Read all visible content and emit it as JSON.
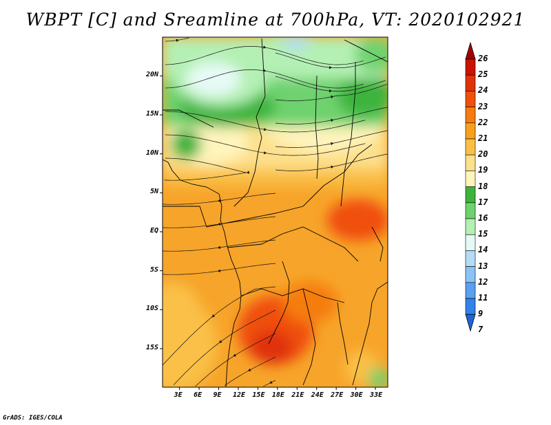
{
  "title": "WBPT [C] and Sreamline at 700hPa, VT: 2020102921",
  "credit": "GrADS: IGES/COLA",
  "lat_axis": [
    "20N",
    "15N",
    "10N",
    "5N",
    "EQ",
    "5S",
    "10S",
    "15S"
  ],
  "lon_axis": [
    "3E",
    "6E",
    "9E",
    "12E",
    "15E",
    "18E",
    "21E",
    "24E",
    "27E",
    "30E",
    "33E"
  ],
  "colorbar": {
    "levels": [
      "26",
      "25",
      "24",
      "23",
      "22",
      "21",
      "20",
      "19",
      "18",
      "17",
      "16",
      "15",
      "14",
      "13",
      "12",
      "11",
      "9",
      "7"
    ],
    "colors": [
      "#a50000",
      "#c81400",
      "#e0320a",
      "#f0500a",
      "#f57d0f",
      "#f8a01e",
      "#fac046",
      "#fde08c",
      "#fff4bc",
      "#3cb43c",
      "#6ed26e",
      "#b4f0b4",
      "#e6faf5",
      "#b4dcf5",
      "#8cc3f5",
      "#5aa0f0",
      "#3282eb",
      "#1e64d7"
    ]
  },
  "legend_unit": "C"
}
